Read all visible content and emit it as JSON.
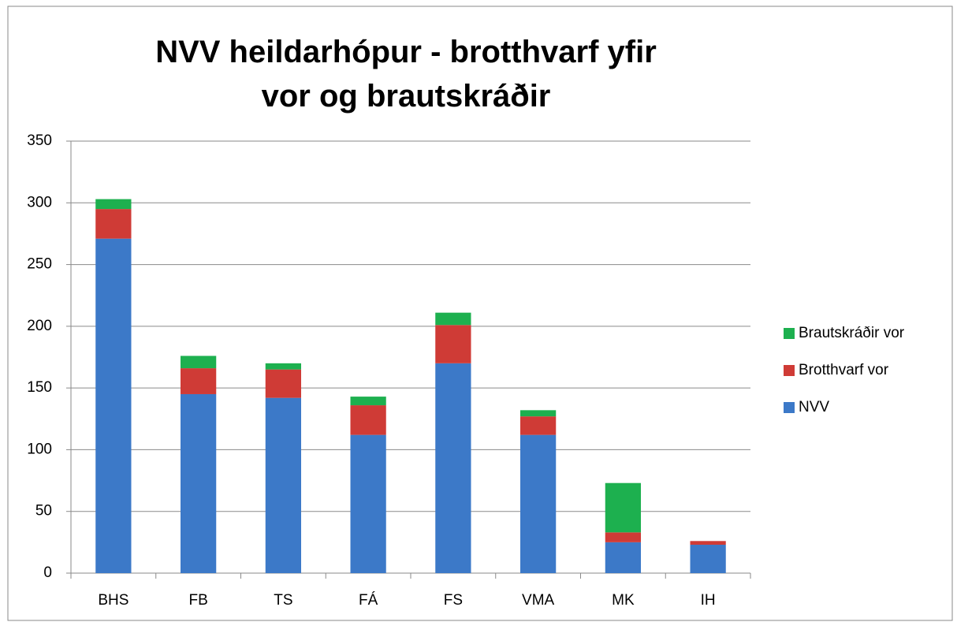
{
  "chart_data": {
    "type": "stacked_bar",
    "title": "NVV heildarhópur - brotthvarf yfir vor og brautskráðir",
    "categories": [
      "BHS",
      "FB",
      "TS",
      "FÁ",
      "FS",
      "VMA",
      "MK",
      "IH"
    ],
    "series": [
      {
        "name": "NVV",
        "color": "#3c79c8",
        "values": [
          271,
          145,
          142,
          112,
          170,
          112,
          25,
          23
        ]
      },
      {
        "name": "Brotthvarf vor",
        "color": "#cf3b36",
        "values": [
          24,
          21,
          23,
          24,
          31,
          15,
          8,
          3
        ]
      },
      {
        "name": "Brautskráðir vor",
        "color": "#1db04f",
        "values": [
          8,
          10,
          5,
          7,
          10,
          5,
          40,
          0
        ]
      }
    ],
    "ylim": [
      0,
      350
    ],
    "yticks": [
      0,
      50,
      100,
      150,
      200,
      250,
      300,
      350
    ],
    "grid": true,
    "legend": "right"
  }
}
